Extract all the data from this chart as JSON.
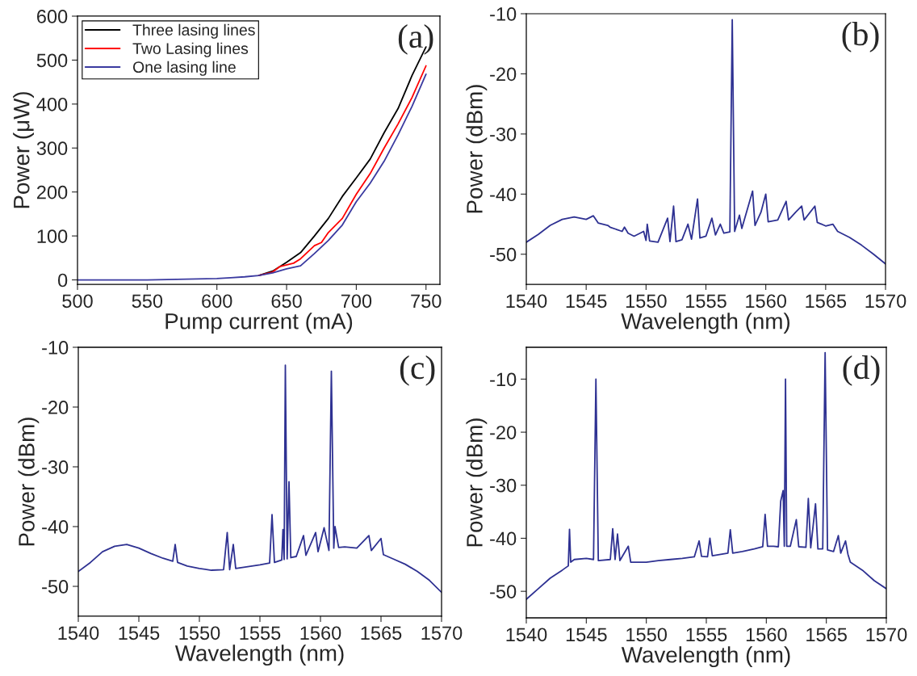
{
  "chart_data": [
    {
      "type": "line",
      "xlabel": "Pump current (mA)",
      "ylabel": "Power (μW)",
      "xlim": [
        500,
        760
      ],
      "ylim": [
        -10,
        600
      ],
      "xticks": [
        500,
        550,
        600,
        650,
        700,
        750
      ],
      "yticks": [
        0,
        100,
        200,
        300,
        400,
        500,
        600
      ],
      "grid": false,
      "legend": "top left",
      "annotations": [
        "(a)"
      ],
      "series": [
        {
          "name": "Three lasing lines",
          "color": "#000000",
          "x": [
            630,
            640,
            650,
            660,
            670,
            680,
            690,
            700,
            710,
            720,
            730,
            740,
            750
          ],
          "values": [
            10,
            20,
            40,
            62,
            100,
            140,
            190,
            232,
            275,
            335,
            390,
            465,
            530
          ]
        },
        {
          "name": "Two Lasing lines",
          "color": "#ff0000",
          "x": [
            630,
            640,
            645,
            655,
            660,
            670,
            675,
            680,
            690,
            700,
            710,
            720,
            730,
            740,
            750
          ],
          "values": [
            10,
            18,
            30,
            38,
            48,
            78,
            85,
            108,
            140,
            195,
            242,
            300,
            355,
            415,
            487
          ]
        },
        {
          "name": "One lasing line",
          "color": "#3a3aa0",
          "x": [
            500,
            550,
            600,
            610,
            620,
            630,
            640,
            650,
            660,
            670,
            680,
            690,
            700,
            710,
            720,
            730,
            740,
            750
          ],
          "values": [
            0,
            0,
            3,
            5,
            7,
            10,
            16,
            25,
            32,
            60,
            90,
            125,
            178,
            220,
            270,
            330,
            395,
            468
          ]
        }
      ]
    },
    {
      "type": "line",
      "xlabel": "Wavelength (nm)",
      "ylabel": "Power (dBm)",
      "xlim": [
        1540,
        1570
      ],
      "ylim": [
        -55,
        -10
      ],
      "xticks": [
        1540,
        1545,
        1550,
        1555,
        1560,
        1565,
        1570
      ],
      "yticks": [
        -50,
        -40,
        -30,
        -20,
        -10
      ],
      "grid": false,
      "annotations": [
        "(b)"
      ],
      "series": [
        {
          "color": "#2e3192",
          "x": [
            1540,
            1541,
            1542,
            1543,
            1544,
            1545,
            1545.6,
            1546,
            1546.8,
            1547,
            1548,
            1548.2,
            1548.5,
            1549,
            1549.8,
            1550,
            1550.1,
            1550.3,
            1551,
            1551.8,
            1552.0,
            1552.3,
            1552.5,
            1553,
            1553.5,
            1553.8,
            1554.3,
            1554.5,
            1555,
            1555.5,
            1555.8,
            1556.2,
            1556.5,
            1557.0,
            1557.2,
            1557.4,
            1557.8,
            1558,
            1558.9,
            1559.1,
            1559.6,
            1560.0,
            1560.2,
            1561,
            1561.7,
            1561.9,
            1562.5,
            1563.0,
            1563.2,
            1564.1,
            1564.3,
            1565,
            1565.6,
            1566,
            1567,
            1568,
            1569,
            1570
          ],
          "values": [
            -48.0,
            -46.7,
            -45.2,
            -44.2,
            -43.8,
            -44.2,
            -43.6,
            -44.8,
            -45.2,
            -45.5,
            -46.2,
            -45.5,
            -46.5,
            -47,
            -46.2,
            -47.7,
            -45.0,
            -47.8,
            -48,
            -44.0,
            -47.9,
            -42.0,
            -47.9,
            -47.6,
            -45.0,
            -47.5,
            -40.8,
            -47.3,
            -47.0,
            -44.0,
            -46.8,
            -45.0,
            -46.5,
            -46.3,
            -11.0,
            -46.2,
            -43.5,
            -45.7,
            -39.5,
            -45.2,
            -43.0,
            -40.0,
            -44.6,
            -44.3,
            -41.2,
            -44.3,
            -43.0,
            -42.0,
            -44.3,
            -42.0,
            -44.7,
            -45.3,
            -45.0,
            -46.2,
            -47.2,
            -48.5,
            -50.0,
            -51.6
          ]
        }
      ]
    },
    {
      "type": "line",
      "xlabel": "Wavelength (nm)",
      "ylabel": "Power (dBm)",
      "xlim": [
        1540,
        1570
      ],
      "ylim": [
        -55,
        -10
      ],
      "xticks": [
        1540,
        1545,
        1550,
        1555,
        1560,
        1565,
        1570
      ],
      "yticks": [
        -50,
        -40,
        -30,
        -20,
        -10
      ],
      "grid": false,
      "annotations": [
        "(c)"
      ],
      "series": [
        {
          "color": "#2e3192",
          "x": [
            1540,
            1541,
            1542,
            1543,
            1544,
            1545,
            1546,
            1547,
            1547.8,
            1548.0,
            1548.2,
            1549,
            1550,
            1551,
            1552,
            1552.3,
            1552.5,
            1552.8,
            1553,
            1554,
            1555,
            1555.8,
            1556.0,
            1556.2,
            1556.8,
            1556.9,
            1557.0,
            1557.1,
            1557.25,
            1557.4,
            1557.55,
            1558,
            1558.6,
            1558.8,
            1559.6,
            1559.8,
            1560.3,
            1560.7,
            1560.9,
            1561.1,
            1561.2,
            1561.5,
            1562,
            1563,
            1564.0,
            1564.2,
            1565.0,
            1565.2,
            1566,
            1567,
            1568,
            1569,
            1570
          ],
          "values": [
            -47.5,
            -46.0,
            -44.2,
            -43.3,
            -43.0,
            -43.6,
            -44.5,
            -45.3,
            -45.8,
            -43.0,
            -46.0,
            -46.6,
            -47.0,
            -47.3,
            -47.2,
            -41.0,
            -47.2,
            -43.0,
            -47.0,
            -46.7,
            -46.4,
            -46.1,
            -38.0,
            -46.0,
            -45.6,
            -40.5,
            -45.5,
            -13.0,
            -45.4,
            -32.5,
            -45.2,
            -45.0,
            -41.5,
            -44.8,
            -41.0,
            -44.2,
            -40.2,
            -44.0,
            -14.0,
            -43.6,
            -40.0,
            -43.5,
            -43.4,
            -43.6,
            -41.5,
            -44.0,
            -42.0,
            -44.7,
            -45.4,
            -46.3,
            -47.5,
            -49.0,
            -51.0
          ]
        }
      ]
    },
    {
      "type": "line",
      "xlabel": "Wavelength (nm)",
      "ylabel": "Power (dBm)",
      "xlim": [
        1540,
        1570
      ],
      "ylim": [
        -55,
        -4
      ],
      "xticks": [
        1540,
        1545,
        1550,
        1555,
        1560,
        1565,
        1570
      ],
      "yticks": [
        -50,
        -40,
        -30,
        -20,
        -10
      ],
      "grid": false,
      "annotations": [
        "(d)"
      ],
      "series": [
        {
          "color": "#2e3192",
          "x": [
            1540,
            1541,
            1542,
            1543,
            1543.5,
            1543.6,
            1543.7,
            1544,
            1545,
            1545.6,
            1545.8,
            1546.0,
            1547,
            1547.2,
            1547.4,
            1547.6,
            1547.8,
            1548.5,
            1548.7,
            1549.5,
            1550,
            1551,
            1552,
            1553,
            1554,
            1554.4,
            1554.6,
            1555.1,
            1555.3,
            1555.5,
            1556.8,
            1557.0,
            1557.2,
            1558,
            1559,
            1559.7,
            1559.9,
            1560.1,
            1560.6,
            1561.0,
            1561.2,
            1561.4,
            1561.5,
            1561.6,
            1561.7,
            1562.0,
            1562.5,
            1562.7,
            1563.3,
            1563.5,
            1563.7,
            1564.1,
            1564.3,
            1564.7,
            1564.9,
            1565.1,
            1565.6,
            1566.0,
            1566.2,
            1566.6,
            1566.8,
            1567,
            1568,
            1569,
            1570
          ],
          "values": [
            -51.5,
            -49.5,
            -47.5,
            -46.0,
            -45.2,
            -38.3,
            -44.5,
            -44.0,
            -43.8,
            -44.0,
            -10.0,
            -44.2,
            -44.0,
            -38.2,
            -44.0,
            -39.2,
            -44.2,
            -41.5,
            -44.5,
            -44.5,
            -44.5,
            -44.2,
            -44.0,
            -43.8,
            -43.5,
            -40.5,
            -43.4,
            -43.5,
            -40.0,
            -43.3,
            -42.8,
            -38.4,
            -42.8,
            -42.5,
            -42.0,
            -41.6,
            -35.5,
            -41.5,
            -41.5,
            -41.6,
            -33.0,
            -31.0,
            -41.5,
            -10.0,
            -41.5,
            -41.5,
            -36.5,
            -41.6,
            -41.7,
            -32.5,
            -41.8,
            -33.5,
            -42.0,
            -42.0,
            -5.0,
            -42.2,
            -42.5,
            -39.5,
            -42.8,
            -40.5,
            -43.0,
            -44.5,
            -46.0,
            -48.0,
            -49.5
          ]
        }
      ]
    }
  ]
}
